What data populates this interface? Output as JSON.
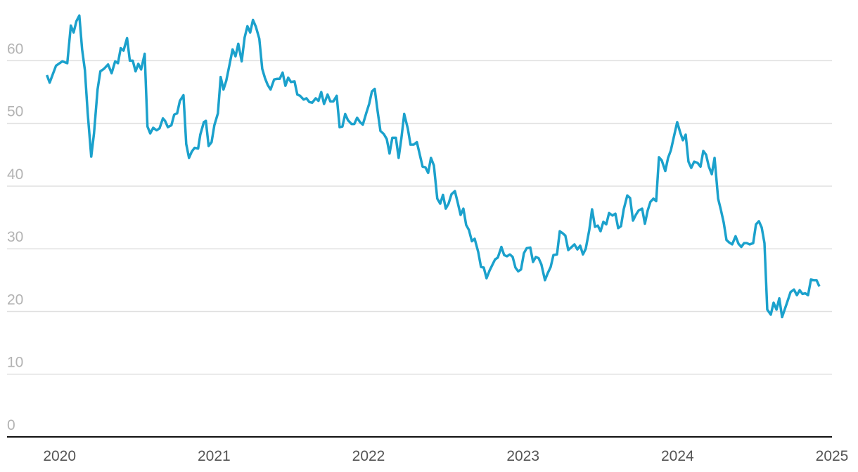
{
  "chart_data": {
    "type": "line",
    "x": [
      2019.918,
      2019.936,
      2019.977,
      2020.018,
      2020.05,
      2020.073,
      2020.091,
      2020.109,
      2020.128,
      2020.146,
      2020.164,
      2020.182,
      2020.205,
      2020.223,
      2020.246,
      2020.264,
      2020.287,
      2020.314,
      2020.337,
      2020.36,
      2020.378,
      2020.396,
      2020.414,
      2020.437,
      2020.455,
      2020.474,
      2020.492,
      2020.51,
      2020.528,
      2020.551,
      2020.569,
      2020.587,
      2020.606,
      2020.628,
      2020.647,
      2020.669,
      2020.683,
      2020.701,
      2020.724,
      2020.742,
      2020.761,
      2020.779,
      2020.802,
      2020.82,
      2020.838,
      2020.856,
      2020.874,
      2020.897,
      2020.911,
      2020.934,
      2020.947,
      2020.965,
      2020.984,
      2021.002,
      2021.025,
      2021.043,
      2021.061,
      2021.079,
      2021.098,
      2021.12,
      2021.139,
      2021.157,
      2021.179,
      2021.198,
      2021.216,
      2021.234,
      2021.252,
      2021.271,
      2021.293,
      2021.312,
      2021.33,
      2021.348,
      2021.366,
      2021.389,
      2021.407,
      2021.425,
      2021.444,
      2021.462,
      2021.48,
      2021.498,
      2021.521,
      2021.539,
      2021.557,
      2021.58,
      2021.598,
      2021.617,
      2021.635,
      2021.658,
      2021.676,
      2021.694,
      2021.712,
      2021.735,
      2021.753,
      2021.772,
      2021.794,
      2021.813,
      2021.831,
      2021.849,
      2021.867,
      2021.89,
      2021.908,
      2021.926,
      2021.945,
      2021.963,
      2021.986,
      2022.004,
      2022.022,
      2022.04,
      2022.058,
      2022.077,
      2022.099,
      2022.118,
      2022.136,
      2022.154,
      2022.177,
      2022.195,
      2022.213,
      2022.231,
      2022.254,
      2022.272,
      2022.291,
      2022.313,
      2022.332,
      2022.35,
      2022.368,
      2022.386,
      2022.404,
      2022.423,
      2022.445,
      2022.464,
      2022.482,
      2022.5,
      2022.518,
      2022.537,
      2022.559,
      2022.578,
      2022.596,
      2022.614,
      2022.632,
      2022.65,
      2022.669,
      2022.687,
      2022.71,
      2022.728,
      2022.746,
      2022.764,
      2022.783,
      2022.801,
      2022.819,
      2022.837,
      2022.86,
      2022.878,
      2022.896,
      2022.915,
      2022.933,
      2022.951,
      2022.969,
      2022.987,
      2023.006,
      2023.024,
      2023.047,
      2023.065,
      2023.083,
      2023.101,
      2023.119,
      2023.142,
      2023.16,
      2023.179,
      2023.197,
      2023.22,
      2023.238,
      2023.256,
      2023.274,
      2023.293,
      2023.311,
      2023.333,
      2023.352,
      2023.37,
      2023.388,
      2023.406,
      2023.429,
      2023.447,
      2023.466,
      2023.484,
      2023.502,
      2023.52,
      2023.539,
      2023.557,
      2023.579,
      2023.598,
      2023.616,
      2023.634,
      2023.652,
      2023.675,
      2023.693,
      2023.712,
      2023.73,
      2023.748,
      2023.771,
      2023.789,
      2023.807,
      2023.825,
      2023.844,
      2023.862,
      2023.88,
      2023.898,
      2023.921,
      2023.939,
      2023.957,
      2023.976,
      2023.998,
      2024.017,
      2024.035,
      2024.053,
      2024.071,
      2024.089,
      2024.108,
      2024.13,
      2024.149,
      2024.167,
      2024.185,
      2024.203,
      2024.222,
      2024.24,
      2024.263,
      2024.281,
      2024.299,
      2024.317,
      2024.335,
      2024.354,
      2024.376,
      2024.395,
      2024.413,
      2024.431,
      2024.449,
      2024.467,
      2024.49,
      2024.508,
      2024.527,
      2024.545,
      2024.563,
      2024.581,
      2024.604,
      2024.622,
      2024.641,
      2024.659,
      2024.677,
      2024.695,
      2024.713,
      2024.732,
      2024.754,
      2024.773,
      2024.791,
      2024.809,
      2024.827,
      2024.845,
      2024.864,
      2024.882,
      2024.9,
      2024.918
    ],
    "series": [
      {
        "color": "#1ba1cc",
        "values": [
          57.7,
          56.5,
          59.2,
          59.9,
          59.6,
          65.6,
          64.5,
          66.3,
          67.2,
          61.8,
          58.5,
          51.7,
          44.7,
          48.4,
          55.4,
          58.3,
          58.7,
          59.4,
          58.0,
          59.9,
          59.6,
          62.0,
          61.6,
          63.6,
          60.0,
          60.0,
          58.3,
          59.5,
          58.6,
          61.1,
          49.5,
          48.4,
          49.3,
          48.9,
          49.2,
          50.8,
          50.4,
          49.4,
          49.7,
          51.4,
          51.6,
          53.6,
          54.5,
          46.7,
          44.5,
          45.5,
          46.1,
          46.0,
          48.2,
          50.2,
          50.4,
          46.4,
          47.0,
          49.7,
          51.6,
          57.4,
          55.4,
          56.8,
          59.1,
          61.8,
          60.7,
          62.7,
          59.9,
          63.7,
          65.5,
          64.5,
          66.5,
          65.4,
          63.5,
          58.7,
          57.2,
          56.1,
          55.4,
          57.0,
          57.1,
          57.1,
          58.1,
          56.0,
          57.3,
          56.6,
          56.7,
          54.6,
          54.4,
          53.8,
          54.0,
          53.4,
          53.3,
          54.0,
          53.6,
          55.0,
          53.1,
          54.6,
          53.5,
          53.5,
          54.4,
          49.4,
          49.5,
          51.5,
          50.5,
          49.9,
          49.9,
          50.9,
          50.2,
          49.8,
          51.7,
          53.1,
          55.1,
          55.5,
          52.1,
          48.8,
          48.3,
          47.5,
          45.2,
          47.7,
          47.7,
          44.5,
          47.7,
          51.5,
          49.2,
          46.6,
          46.6,
          47.0,
          45.0,
          43.1,
          43.0,
          42.1,
          44.5,
          43.3,
          38.0,
          37.2,
          38.6,
          36.4,
          37.2,
          38.7,
          39.2,
          37.3,
          35.4,
          36.4,
          33.8,
          33.0,
          31.2,
          31.6,
          29.5,
          27.1,
          27.0,
          25.3,
          26.5,
          27.4,
          28.3,
          28.6,
          30.3,
          29.0,
          28.8,
          29.1,
          28.7,
          27.0,
          26.4,
          26.7,
          29.3,
          30.1,
          30.2,
          27.9,
          28.7,
          28.5,
          27.5,
          25.0,
          26.1,
          27.1,
          29.0,
          29.1,
          32.8,
          32.5,
          32.1,
          29.8,
          30.2,
          30.7,
          29.9,
          30.5,
          29.1,
          30.0,
          33.0,
          36.3,
          33.5,
          33.7,
          32.8,
          34.3,
          33.9,
          35.7,
          35.3,
          35.6,
          33.3,
          33.6,
          36.3,
          38.5,
          38.1,
          34.5,
          35.4,
          36.1,
          36.4,
          34.0,
          36.1,
          37.5,
          38.0,
          37.6,
          44.6,
          44.1,
          42.4,
          44.5,
          45.7,
          47.8,
          50.2,
          48.6,
          47.3,
          48.2,
          43.9,
          42.9,
          43.9,
          43.7,
          43.1,
          45.6,
          45.0,
          43.1,
          41.9,
          44.5,
          38.0,
          36.2,
          34.2,
          31.4,
          31.0,
          30.7,
          32.0,
          30.8,
          30.3,
          30.9,
          30.9,
          30.7,
          30.9,
          33.9,
          34.4,
          33.4,
          30.9,
          20.3,
          19.5,
          21.4,
          20.3,
          22.1,
          19.1,
          20.4,
          21.7,
          23.1,
          23.5,
          22.6,
          23.4,
          22.8,
          22.9,
          22.6,
          25.1,
          25.0,
          25.0,
          24.0
        ]
      }
    ],
    "xlim": [
      2019.66,
      2025
    ],
    "xticks": [
      2020,
      2021,
      2022,
      2023,
      2024,
      2025
    ],
    "ylim": [
      0,
      68
    ],
    "yticks": [
      0,
      10,
      20,
      30,
      40,
      50,
      60
    ],
    "grid": true
  }
}
